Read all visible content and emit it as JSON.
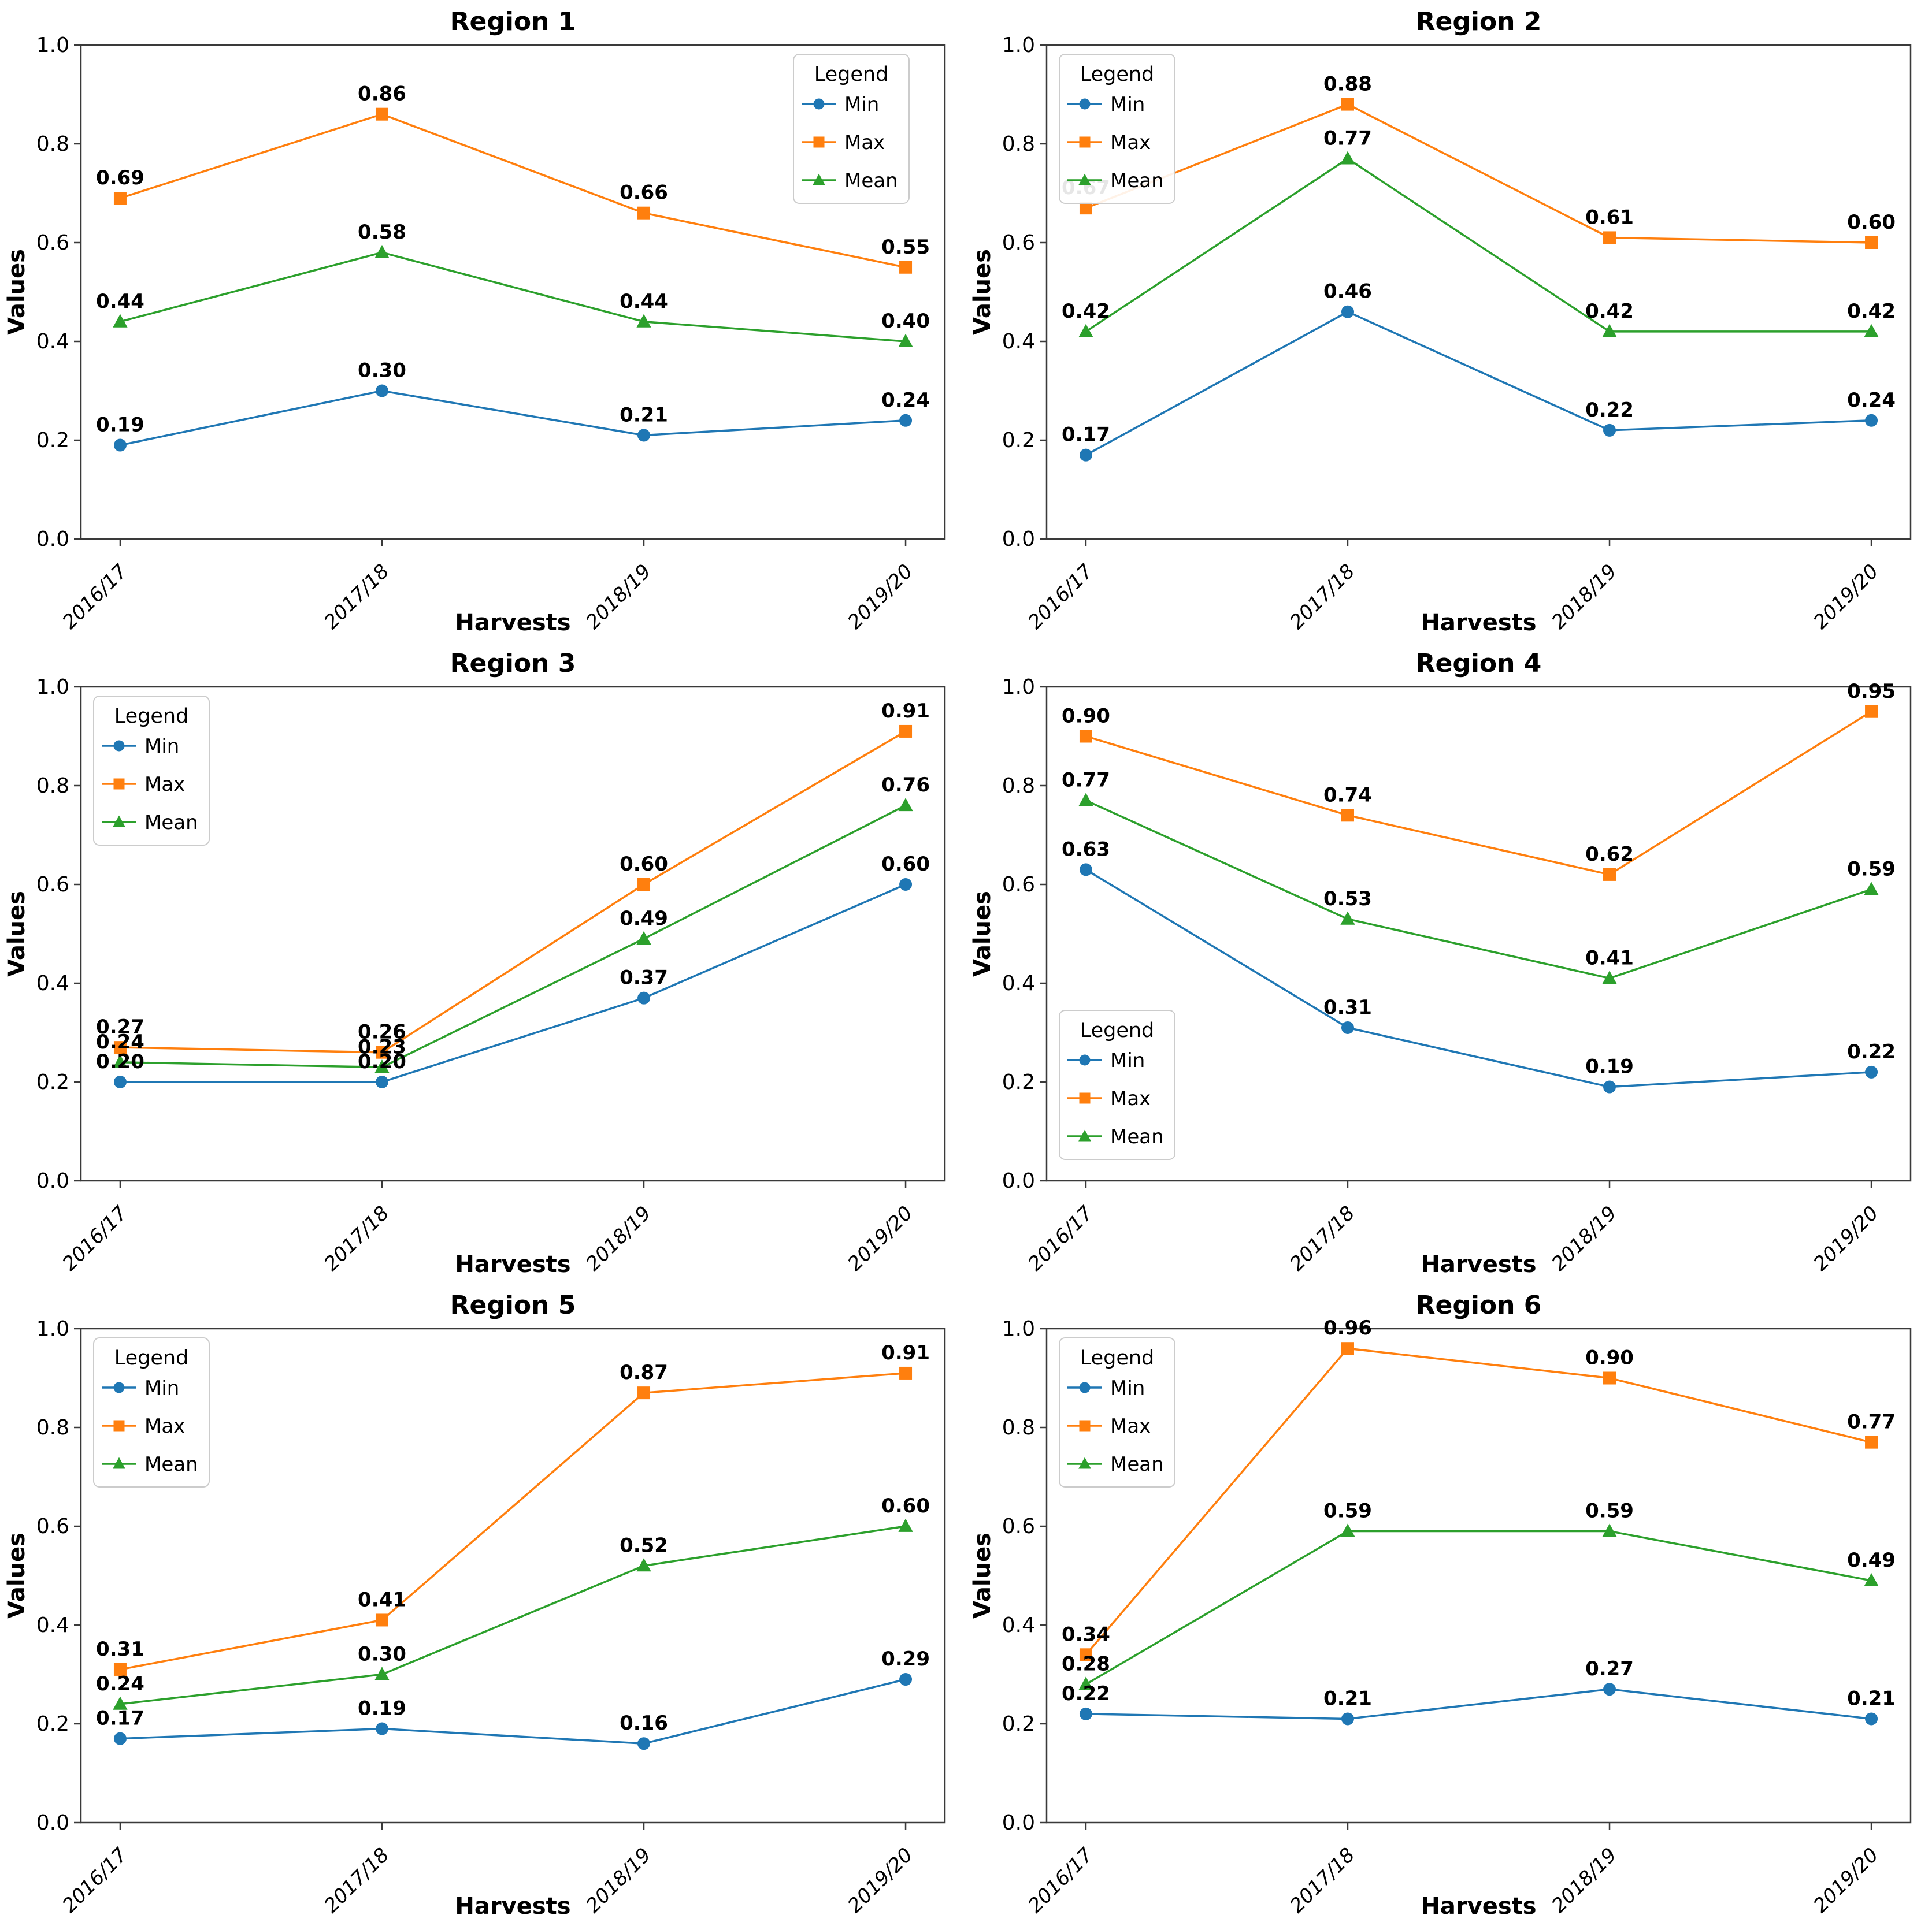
{
  "figure": {
    "background": "#ffffff",
    "text_color": "#000000",
    "spine_color": "#3a3a3a",
    "rows": 3,
    "columns": 2
  },
  "chart_data": [
    {
      "type": "line",
      "title": "Region 1",
      "xlabel": "Harvests",
      "ylabel": "Values",
      "categories": [
        "2016/17",
        "2017/18",
        "2018/19",
        "2019/20"
      ],
      "ylim": [
        0.0,
        1.0
      ],
      "yticks": [
        "0.0",
        "0.2",
        "0.4",
        "0.6",
        "0.8",
        "1.0"
      ],
      "grid": false,
      "point_label_format": "2dp",
      "legend": {
        "title": "Legend",
        "position": "upper-right"
      },
      "series": [
        {
          "name": "Min",
          "marker": "circle",
          "color": "#1f77b4",
          "values": [
            0.19,
            0.3,
            0.21,
            0.24
          ]
        },
        {
          "name": "Max",
          "marker": "square",
          "color": "#ff7f0e",
          "values": [
            0.69,
            0.86,
            0.66,
            0.55
          ]
        },
        {
          "name": "Mean",
          "marker": "triangle",
          "color": "#2ca02c",
          "values": [
            0.44,
            0.58,
            0.44,
            0.4
          ]
        }
      ]
    },
    {
      "type": "line",
      "title": "Region 2",
      "xlabel": "Harvests",
      "ylabel": "Values",
      "categories": [
        "2016/17",
        "2017/18",
        "2018/19",
        "2019/20"
      ],
      "ylim": [
        0.0,
        1.0
      ],
      "yticks": [
        "0.0",
        "0.2",
        "0.4",
        "0.6",
        "0.8",
        "1.0"
      ],
      "grid": false,
      "point_label_format": "2dp",
      "legend": {
        "title": "Legend",
        "position": "upper-left"
      },
      "series": [
        {
          "name": "Min",
          "marker": "circle",
          "color": "#1f77b4",
          "values": [
            0.17,
            0.46,
            0.22,
            0.24
          ]
        },
        {
          "name": "Max",
          "marker": "square",
          "color": "#ff7f0e",
          "values": [
            0.67,
            0.88,
            0.61,
            0.6
          ]
        },
        {
          "name": "Mean",
          "marker": "triangle",
          "color": "#2ca02c",
          "values": [
            0.42,
            0.77,
            0.42,
            0.42
          ]
        }
      ]
    },
    {
      "type": "line",
      "title": "Region 3",
      "xlabel": "Harvests",
      "ylabel": "Values",
      "categories": [
        "2016/17",
        "2017/18",
        "2018/19",
        "2019/20"
      ],
      "ylim": [
        0.0,
        1.0
      ],
      "yticks": [
        "0.0",
        "0.2",
        "0.4",
        "0.6",
        "0.8",
        "1.0"
      ],
      "grid": false,
      "point_label_format": "2dp",
      "legend": {
        "title": "Legend",
        "position": "upper-left"
      },
      "series": [
        {
          "name": "Min",
          "marker": "circle",
          "color": "#1f77b4",
          "values": [
            0.2,
            0.2,
            0.37,
            0.6
          ]
        },
        {
          "name": "Max",
          "marker": "square",
          "color": "#ff7f0e",
          "values": [
            0.27,
            0.26,
            0.6,
            0.91
          ]
        },
        {
          "name": "Mean",
          "marker": "triangle",
          "color": "#2ca02c",
          "values": [
            0.24,
            0.23,
            0.49,
            0.76
          ]
        }
      ]
    },
    {
      "type": "line",
      "title": "Region 4",
      "xlabel": "Harvests",
      "ylabel": "Values",
      "categories": [
        "2016/17",
        "2017/18",
        "2018/19",
        "2019/20"
      ],
      "ylim": [
        0.0,
        1.0
      ],
      "yticks": [
        "0.0",
        "0.2",
        "0.4",
        "0.6",
        "0.8",
        "1.0"
      ],
      "grid": false,
      "point_label_format": "2dp",
      "legend": {
        "title": "Legend",
        "position": "center-left"
      },
      "series": [
        {
          "name": "Min",
          "marker": "circle",
          "color": "#1f77b4",
          "values": [
            0.63,
            0.31,
            0.19,
            0.22
          ]
        },
        {
          "name": "Max",
          "marker": "square",
          "color": "#ff7f0e",
          "values": [
            0.9,
            0.74,
            0.62,
            0.95
          ]
        },
        {
          "name": "Mean",
          "marker": "triangle",
          "color": "#2ca02c",
          "values": [
            0.77,
            0.53,
            0.41,
            0.59
          ]
        }
      ]
    },
    {
      "type": "line",
      "title": "Region 5",
      "xlabel": "Harvests",
      "ylabel": "Values",
      "categories": [
        "2016/17",
        "2017/18",
        "2018/19",
        "2019/20"
      ],
      "ylim": [
        0.0,
        1.0
      ],
      "yticks": [
        "0.0",
        "0.2",
        "0.4",
        "0.6",
        "0.8",
        "1.0"
      ],
      "grid": false,
      "point_label_format": "2dp",
      "legend": {
        "title": "Legend",
        "position": "upper-left"
      },
      "series": [
        {
          "name": "Min",
          "marker": "circle",
          "color": "#1f77b4",
          "values": [
            0.17,
            0.19,
            0.16,
            0.29
          ]
        },
        {
          "name": "Max",
          "marker": "square",
          "color": "#ff7f0e",
          "values": [
            0.31,
            0.41,
            0.87,
            0.91
          ]
        },
        {
          "name": "Mean",
          "marker": "triangle",
          "color": "#2ca02c",
          "values": [
            0.24,
            0.3,
            0.52,
            0.6
          ]
        }
      ]
    },
    {
      "type": "line",
      "title": "Region 6",
      "xlabel": "Harvests",
      "ylabel": "Values",
      "categories": [
        "2016/17",
        "2017/18",
        "2018/19",
        "2019/20"
      ],
      "ylim": [
        0.0,
        1.0
      ],
      "yticks": [
        "0.0",
        "0.2",
        "0.4",
        "0.6",
        "0.8",
        "1.0"
      ],
      "grid": false,
      "point_label_format": "2dp",
      "legend": {
        "title": "Legend",
        "position": "upper-left"
      },
      "series": [
        {
          "name": "Min",
          "marker": "circle",
          "color": "#1f77b4",
          "values": [
            0.22,
            0.21,
            0.27,
            0.21
          ]
        },
        {
          "name": "Max",
          "marker": "square",
          "color": "#ff7f0e",
          "values": [
            0.34,
            0.96,
            0.9,
            0.77
          ]
        },
        {
          "name": "Mean",
          "marker": "triangle",
          "color": "#2ca02c",
          "values": [
            0.28,
            0.59,
            0.59,
            0.49
          ]
        }
      ]
    }
  ]
}
